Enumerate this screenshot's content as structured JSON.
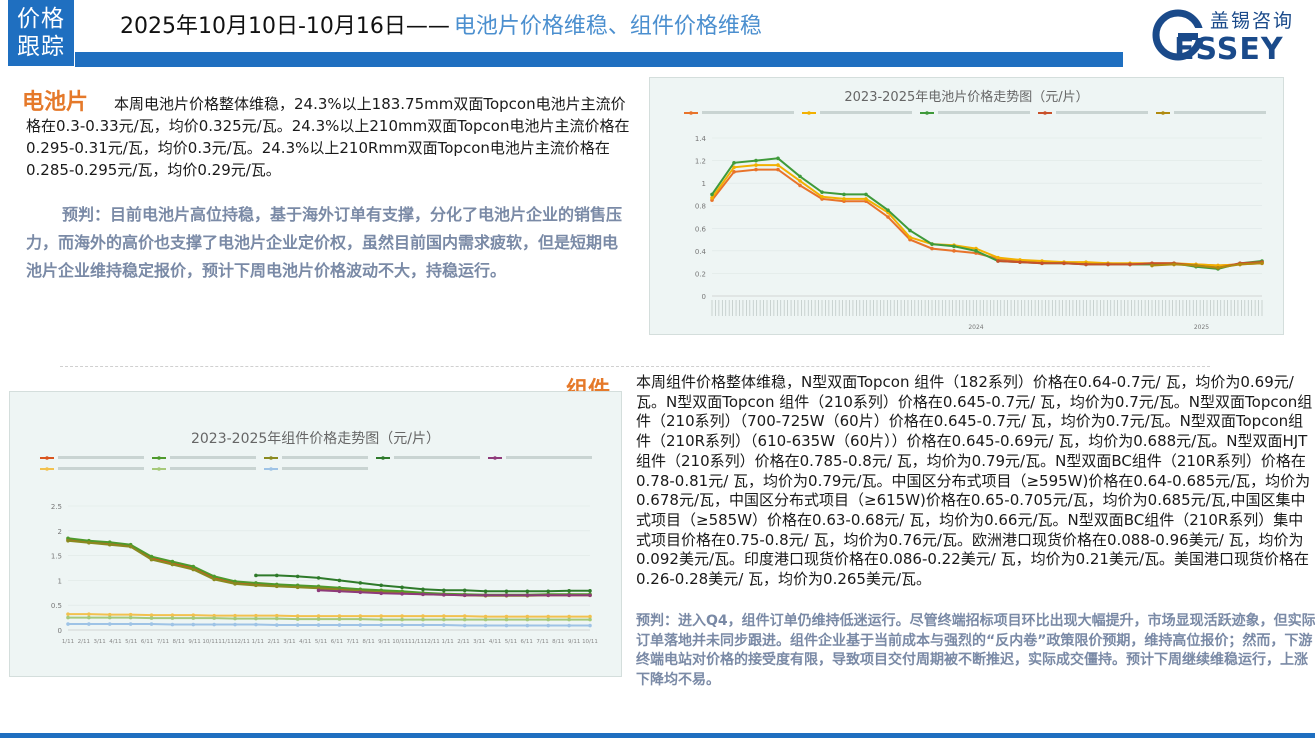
{
  "header": {
    "tag": "价格\n跟踪",
    "tag_line1": "价格",
    "tag_line2": "跟踪",
    "date": "2025年10月10日-10月16日——",
    "subtitle": "电池片价格维稳、组件价格维稳",
    "logo_cn": "盖锡咨询",
    "logo_en": "ESSEY",
    "logo_g": "G"
  },
  "colors": {
    "brand_blue": "#1f6fc0",
    "orange_title": "#e5792a",
    "prediction_gray": "#7a8aa6"
  },
  "cell": {
    "title": "电池片",
    "text": "本周电池片价格整体维稳，24.3%以上183.75mm双面Topcon电池片主流价格在0.3-0.33元/瓦，均价0.325元/瓦。24.3%以上210mm双面Topcon电池片主流价格在0.295-0.31元/瓦，均价0.3元/瓦。24.3%以上210Rmm双面Topcon电池片主流价格在0.285-0.295元/瓦，均价0.29元/瓦。",
    "prediction": "预判：目前电池片高位持稳，基于海外订单有支撑，分化了电池片企业的销售压力，而海外的高价也支撑了电池片企业定价权，虽然目前国内需求疲软，但是短期电池片企业维持稳定报价，预计下周电池片价格波动不大，持稳运行。"
  },
  "module": {
    "title": "组件",
    "text": "本周组件价格整体维稳，N型双面Topcon 组件（182系列）价格在0.64-0.7元/ 瓦，均价为0.69元/瓦。N型双面Topcon 组件（210系列）价格在0.645-0.7元/ 瓦，均价为0.7元/瓦。N型双面Topcon组件（210系列）（700-725W（60片）价格在0.645-0.7元/ 瓦，均价为0.7元/瓦。N型双面Topcon组件（210R系列）（610-635W（60片））价格在0.645-0.69元/ 瓦，均价为0.688元/瓦。N型双面HJT组件（210系列）价格在0.785-0.8元/ 瓦，均价为0.79元/瓦。N型双面BC组件（210R系列）价格在0.78-0.81元/ 瓦，均价为0.79元/瓦。中国区分布式项目（≥595W)价格在0.64-0.685元/瓦，均价为0.678元/瓦，中国区分布式项目（≥615W)价格在0.65-0.705元/瓦，均价为0.685元/瓦,中国区集中式项目（≥585W）价格在0.63-0.68元/ 瓦，均价为0.66元/瓦。N型双面BC组件（210R系列）集中式项目价格在0.75-0.8元/ 瓦，均价为0.76元/瓦。欧洲港口现货价格在0.088-0.96美元/ 瓦，均价为0.092美元/瓦。印度港口现货价格在0.086-0.22美元/ 瓦，均价为0.21美元/瓦。美国港口现货价格在0.26-0.28美元/ 瓦，均价为0.265美元/瓦。",
    "prediction": "预判：进入Q4，组件订单仍维持低迷运行。尽管终端招标项目环比出现大幅提升，市场显现活跃迹象，但实际订单落地并未同步跟进。组件企业基于当前成本与强烈的“反内卷”政策限价预期，维持高位报价；然而，下游终端电站对价格的接受度有限，导致项目交付周期被不断推迟，实际成交僵持。预计下周继续维稳运行，上涨下降均不易。"
  },
  "chart_data": [
    {
      "type": "line",
      "title": "2023-2025年电池片价格走势图（元/片）",
      "ylim": [
        0,
        1.4
      ],
      "yticks": [
        0,
        0.2,
        0.4,
        0.6,
        0.8,
        1,
        1.2,
        1.4
      ],
      "xgroups": [
        "2024",
        "2025"
      ],
      "x": [
        0,
        4,
        8,
        12,
        16,
        20,
        24,
        28,
        32,
        36,
        40,
        44,
        48,
        52,
        56,
        60,
        64,
        68,
        72,
        76,
        80,
        84,
        88,
        92,
        96,
        100
      ],
      "series": [
        {
          "color": "#e8732a",
          "values": [
            0.85,
            1.1,
            1.12,
            1.12,
            0.98,
            0.86,
            0.84,
            0.84,
            0.7,
            0.5,
            0.42,
            0.4,
            0.38,
            0.33,
            0.31,
            0.3,
            0.3,
            0.29,
            0.29,
            0.28,
            0.28,
            0.28,
            0.28,
            0.27,
            0.28,
            0.29
          ]
        },
        {
          "color": "#f2b000",
          "values": [
            0.87,
            1.14,
            1.16,
            1.16,
            1.02,
            0.88,
            0.86,
            0.86,
            0.74,
            0.52,
            0.46,
            0.45,
            0.42,
            0.34,
            0.32,
            0.31,
            0.3,
            0.3,
            0.29,
            0.29,
            0.29,
            0.29,
            0.28,
            0.27,
            0.28,
            0.3
          ]
        },
        {
          "color": "#3f9a3a",
          "values": [
            0.9,
            1.18,
            1.2,
            1.22,
            1.06,
            0.92,
            0.9,
            0.9,
            0.76,
            0.58,
            0.46,
            0.44,
            0.4,
            0.31,
            0.3,
            0.29,
            0.29,
            0.28,
            0.28,
            0.28,
            0.28,
            0.29,
            0.26,
            0.24,
            0.29,
            0.31
          ]
        },
        {
          "color": "#c8502a",
          "values": [
            null,
            null,
            null,
            null,
            null,
            null,
            null,
            null,
            null,
            null,
            null,
            null,
            null,
            0.31,
            0.3,
            0.29,
            0.29,
            0.28,
            0.28,
            0.28,
            0.29,
            0.29,
            0.27,
            0.25,
            0.29,
            0.3
          ]
        },
        {
          "color": "#b08a10",
          "values": [
            null,
            null,
            null,
            null,
            null,
            null,
            null,
            null,
            null,
            null,
            null,
            null,
            null,
            null,
            null,
            null,
            null,
            null,
            null,
            null,
            0.27,
            0.28,
            0.27,
            0.25,
            0.28,
            0.29
          ]
        }
      ]
    },
    {
      "type": "line",
      "title": "2023-2025年组件价格走势图（元/片）",
      "ylim": [
        0,
        2.5
      ],
      "yticks": [
        0,
        0.5,
        1,
        1.5,
        2,
        2.5
      ],
      "x": [
        0,
        4,
        8,
        12,
        16,
        20,
        24,
        28,
        32,
        36,
        40,
        44,
        48,
        52,
        56,
        60,
        64,
        68,
        72,
        76,
        80,
        84,
        88,
        92,
        96,
        100
      ],
      "xticks": [
        "1/11",
        "2/11",
        "3/11",
        "4/11",
        "5/11",
        "6/11",
        "7/11",
        "8/11",
        "9/11",
        "10/11",
        "11/11",
        "12/11",
        "1/11",
        "2/11",
        "3/11",
        "4/11",
        "5/11",
        "6/11",
        "7/11",
        "8/11",
        "9/11",
        "10/11",
        "11/11",
        "12/11",
        "1/11",
        "2/11",
        "3/11",
        "4/11",
        "5/11",
        "6/11",
        "7/11",
        "8/11",
        "9/11",
        "10/11"
      ],
      "series": [
        {
          "color": "#d9541e",
          "values": [
            1.82,
            1.78,
            1.75,
            1.7,
            1.45,
            1.35,
            1.25,
            1.05,
            0.95,
            0.92,
            0.9,
            0.88,
            0.86,
            0.82,
            0.8,
            0.78,
            0.76,
            0.74,
            0.72,
            0.7,
            0.7,
            0.7,
            0.7,
            0.7,
            0.7,
            0.7
          ]
        },
        {
          "color": "#4e9a2c",
          "values": [
            1.85,
            1.8,
            1.77,
            1.72,
            1.48,
            1.38,
            1.28,
            1.08,
            0.98,
            0.95,
            0.92,
            0.9,
            0.88,
            0.85,
            0.82,
            0.8,
            0.78,
            0.75,
            0.73,
            0.72,
            0.71,
            0.71,
            0.71,
            0.72,
            0.72,
            0.72
          ]
        },
        {
          "color": "#8a8a20",
          "values": [
            1.8,
            1.76,
            1.72,
            1.68,
            1.42,
            1.32,
            1.22,
            1.02,
            0.93,
            0.9,
            0.88,
            0.86,
            0.84,
            0.8,
            0.78,
            0.76,
            0.74,
            0.72,
            0.71,
            0.7,
            0.69,
            0.69,
            0.69,
            0.7,
            0.7,
            0.7
          ]
        },
        {
          "color": "#2e7a2a",
          "values": [
            null,
            null,
            null,
            null,
            null,
            null,
            null,
            null,
            null,
            1.1,
            1.1,
            1.08,
            1.05,
            1.0,
            0.95,
            0.9,
            0.86,
            0.82,
            0.8,
            0.8,
            0.78,
            0.78,
            0.78,
            0.78,
            0.79,
            0.79
          ]
        },
        {
          "color": "#8e3a7a",
          "values": [
            null,
            null,
            null,
            null,
            null,
            null,
            null,
            null,
            null,
            null,
            null,
            null,
            0.8,
            0.78,
            0.76,
            0.74,
            0.73,
            0.72,
            0.71,
            0.7,
            0.7,
            0.7,
            0.7,
            0.7,
            0.7,
            0.7
          ]
        },
        {
          "color": "#f2c14e",
          "values": [
            0.32,
            0.32,
            0.31,
            0.31,
            0.3,
            0.3,
            0.3,
            0.29,
            0.29,
            0.29,
            0.29,
            0.28,
            0.28,
            0.28,
            0.28,
            0.28,
            0.28,
            0.28,
            0.28,
            0.28,
            0.27,
            0.27,
            0.27,
            0.27,
            0.27,
            0.27
          ]
        },
        {
          "color": "#a6c97a",
          "values": [
            0.25,
            0.25,
            0.25,
            0.25,
            0.24,
            0.24,
            0.24,
            0.24,
            0.23,
            0.23,
            0.23,
            0.22,
            0.22,
            0.22,
            0.22,
            0.21,
            0.21,
            0.21,
            0.21,
            0.21,
            0.21,
            0.21,
            0.21,
            0.21,
            0.21,
            0.21
          ]
        },
        {
          "color": "#9ec3e6",
          "values": [
            0.12,
            0.12,
            0.12,
            0.12,
            0.12,
            0.11,
            0.11,
            0.11,
            0.11,
            0.11,
            0.1,
            0.1,
            0.1,
            0.1,
            0.1,
            0.1,
            0.1,
            0.1,
            0.1,
            0.09,
            0.09,
            0.09,
            0.09,
            0.09,
            0.09,
            0.09
          ]
        }
      ]
    }
  ]
}
